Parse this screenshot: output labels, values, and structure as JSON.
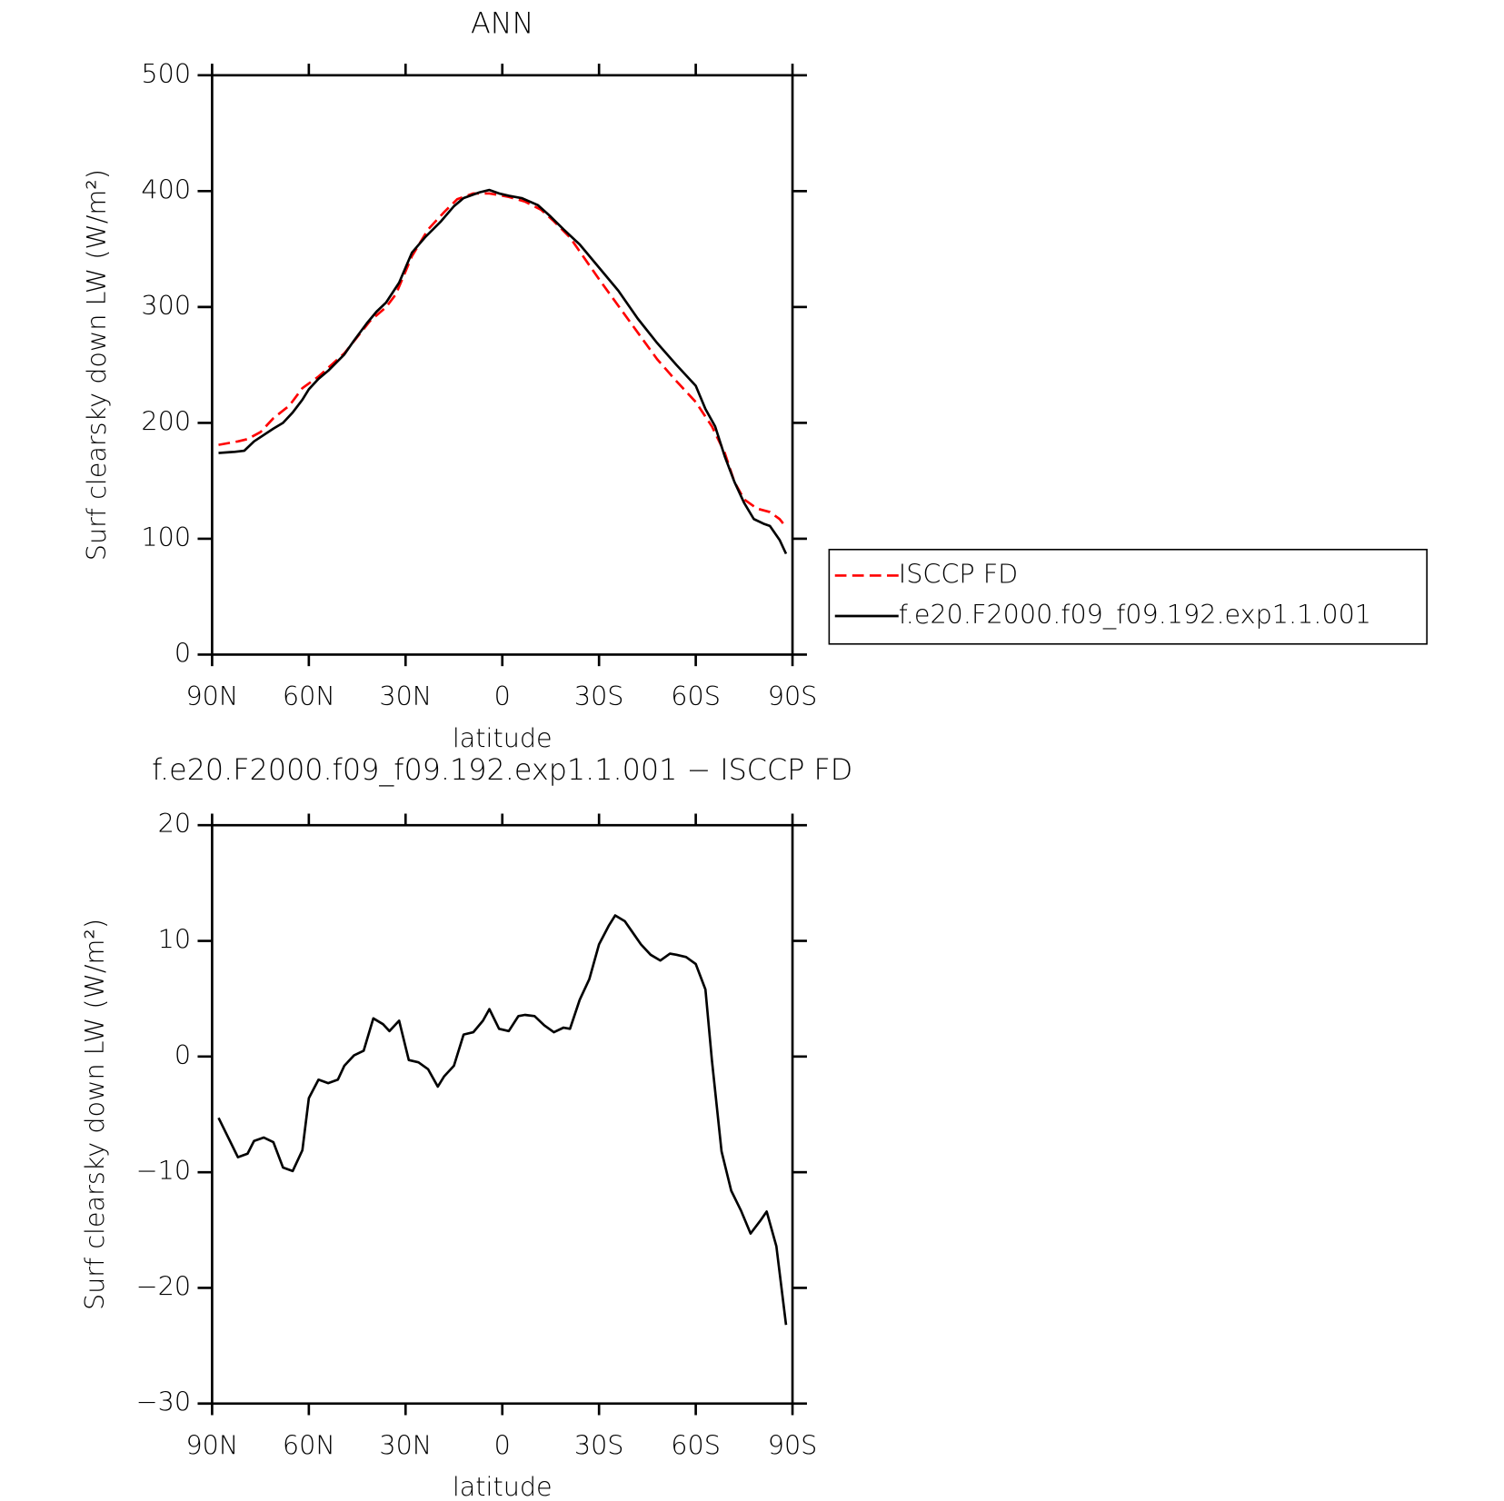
{
  "chart_data": [
    {
      "type": "line",
      "title": "ANN",
      "xlabel": "latitude",
      "ylabel": "Surf clearsky down LW (W/m²)",
      "xlim": [
        90,
        -90
      ],
      "xticks": [
        {
          "value": 90,
          "label": "90N"
        },
        {
          "value": 60,
          "label": "60N"
        },
        {
          "value": 30,
          "label": "30N"
        },
        0,
        {
          "value": -30,
          "label": "30S"
        },
        {
          "value": -60,
          "label": "60S"
        },
        {
          "value": -90,
          "label": "90S"
        }
      ],
      "ylim": [
        0,
        500
      ],
      "yticks": [
        0,
        100,
        200,
        300,
        400,
        500
      ],
      "legend": "right",
      "series": [
        {
          "name": "ISCCP FD",
          "color": "#ff0000",
          "style": "dashed",
          "x": [
            88,
            82,
            79,
            75,
            71,
            66,
            62,
            57,
            53,
            49,
            45,
            41,
            36,
            33,
            28,
            23,
            18,
            14,
            9,
            4,
            -2,
            -7,
            -12,
            -16,
            -21,
            -25,
            -30,
            -36,
            -42,
            -48,
            -54,
            -60,
            -65,
            -69,
            -72,
            -75,
            -79,
            -83,
            -86,
            -88
          ],
          "values": [
            181,
            184,
            186,
            192,
            204,
            215,
            230,
            240,
            250,
            260,
            274,
            288,
            300,
            311,
            344,
            367,
            382,
            393,
            398,
            398,
            395,
            391,
            384,
            374,
            360,
            344,
            324,
            301,
            278,
            255,
            236,
            218,
            197,
            174,
            149,
            134,
            126,
            123,
            117,
            110
          ]
        },
        {
          "name": "f.e20.F2000.f09_f09.192.exp1.1.001",
          "color": "#000000",
          "style": "solid",
          "x": [
            88,
            83,
            80,
            77,
            71,
            68,
            65,
            62,
            60,
            57,
            54,
            49,
            46,
            42,
            39,
            36,
            32,
            28,
            24,
            19,
            15,
            12,
            7,
            4,
            1,
            -2,
            -6,
            -11,
            -15,
            -19,
            -24,
            -30,
            -36,
            -42,
            -48,
            -54,
            -60,
            -63,
            -66,
            -69,
            -72,
            -75,
            -78,
            -81,
            -83,
            -86,
            -88
          ],
          "values": [
            174,
            175,
            176,
            184,
            195,
            200,
            209,
            220,
            229,
            238,
            245,
            259,
            271,
            286,
            296,
            304,
            321,
            347,
            360,
            374,
            387,
            394,
            399,
            401,
            398,
            396,
            394,
            388,
            378,
            367,
            354,
            334,
            314,
            290,
            269,
            250,
            232,
            212,
            197,
            171,
            149,
            131,
            117,
            113,
            111,
            99,
            87
          ]
        }
      ]
    },
    {
      "type": "line",
      "title": "f.e20.F2000.f09_f09.192.exp1.1.001 − ISCCP FD",
      "xlabel": "latitude",
      "ylabel": "Surf clearsky down LW (W/m²)",
      "xlim": [
        90,
        -90
      ],
      "xticks": [
        {
          "value": 90,
          "label": "90N"
        },
        {
          "value": 60,
          "label": "60N"
        },
        {
          "value": 30,
          "label": "30N"
        },
        0,
        {
          "value": -30,
          "label": "30S"
        },
        {
          "value": -60,
          "label": "60S"
        },
        {
          "value": -90,
          "label": "90S"
        }
      ],
      "ylim": [
        -30,
        20
      ],
      "yticks": [
        {
          "value": -30,
          "label": "−30"
        },
        {
          "value": -20,
          "label": "−20"
        },
        {
          "value": -10,
          "label": "−10"
        },
        0,
        10,
        20
      ],
      "series": [
        {
          "color": "#000000",
          "style": "solid",
          "x": [
            88,
            85,
            82,
            79,
            77,
            74,
            71,
            68,
            65,
            62,
            60,
            57,
            54,
            51,
            49,
            46,
            43,
            40,
            37,
            35,
            32,
            29,
            26,
            23,
            20,
            18,
            15,
            12,
            9,
            6,
            4,
            1,
            -2,
            -5,
            -7,
            -10,
            -13,
            -16,
            -19,
            -21,
            -24,
            -27,
            -30,
            -33,
            -35,
            -38,
            -40,
            -43,
            -46,
            -49,
            -52,
            -54,
            -57,
            -60,
            -63,
            -65,
            -68,
            -71,
            -74,
            -77,
            -80,
            -82,
            -85,
            -88
          ],
          "values": [
            -5.3,
            -7,
            -8.7,
            -8.4,
            -7.3,
            -7,
            -7.4,
            -9.6,
            -9.9,
            -8.1,
            -3.6,
            -2,
            -2.3,
            -2,
            -0.8,
            0.1,
            0.5,
            3.3,
            2.8,
            2.2,
            3.1,
            -0.3,
            -0.5,
            -1.1,
            -2.6,
            -1.7,
            -0.8,
            1.9,
            2.1,
            3.1,
            4.1,
            2.4,
            2.2,
            3.5,
            3.6,
            3.5,
            2.7,
            2.1,
            2.5,
            2.4,
            4.9,
            6.7,
            9.7,
            11.3,
            12.2,
            11.7,
            10.9,
            9.7,
            8.8,
            8.3,
            8.9,
            8.8,
            8.6,
            8,
            5.8,
            -0.3,
            -8.2,
            -11.6,
            -13.3,
            -15.3,
            -14.2,
            -13.4,
            -16.4,
            -23.2
          ]
        }
      ]
    }
  ]
}
